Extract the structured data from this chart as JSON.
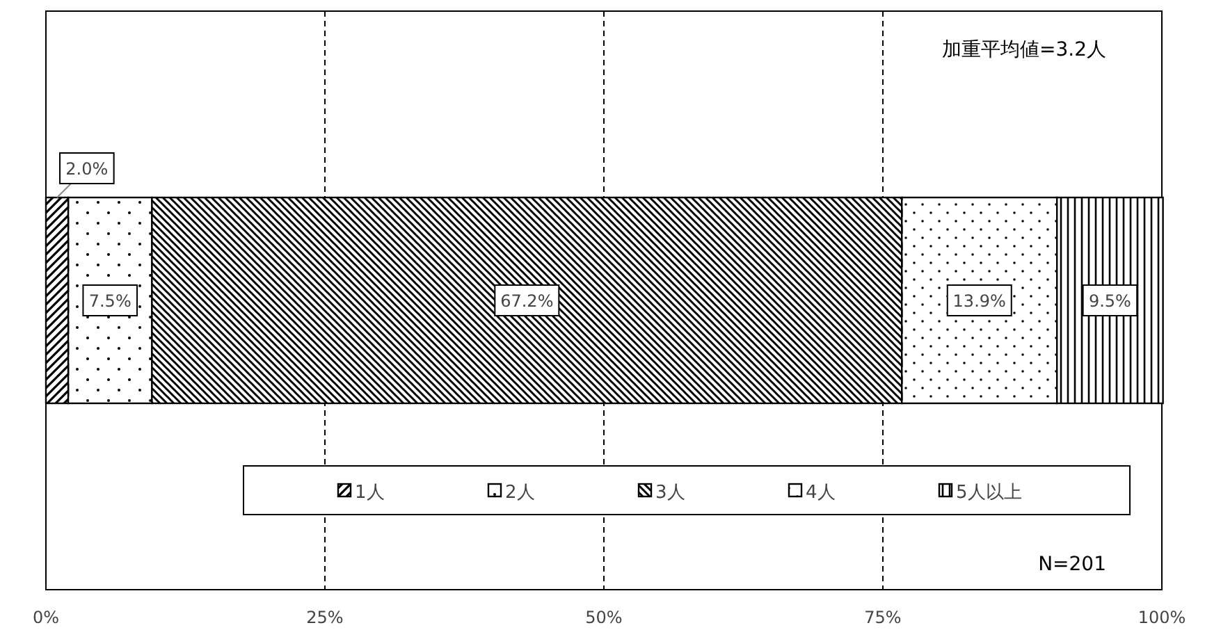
{
  "chart_data": {
    "type": "bar",
    "orientation": "horizontal",
    "stacked": true,
    "categories": [
      null
    ],
    "series": [
      {
        "name": "1人",
        "color": "#000000",
        "values": [
          2.0
        ],
        "value_labels": [
          "2.0%"
        ]
      },
      {
        "name": "2人",
        "color": "#000000",
        "values": [
          7.5
        ],
        "value_labels": [
          "7.5%"
        ]
      },
      {
        "name": "3人",
        "color": "#000000",
        "values": [
          67.2
        ],
        "value_labels": [
          "67.2%"
        ]
      },
      {
        "name": "4人",
        "color": "#000000",
        "values": [
          13.9
        ],
        "value_labels": [
          "13.9%"
        ]
      },
      {
        "name": "5人以上",
        "color": "#000000",
        "values": [
          9.5
        ],
        "value_labels": [
          "9.5%"
        ]
      }
    ],
    "xlim": [
      0,
      100
    ],
    "xticks": [
      {
        "value": 0,
        "label": "0%"
      },
      {
        "value": 25,
        "label": "25%"
      },
      {
        "value": 50,
        "label": "50%"
      },
      {
        "value": 75,
        "label": "75%"
      },
      {
        "value": 100,
        "label": "100%"
      }
    ],
    "grid": "x",
    "legend": "bottom",
    "annotations": [
      "加重平均値=3.2人",
      "N=201"
    ]
  }
}
